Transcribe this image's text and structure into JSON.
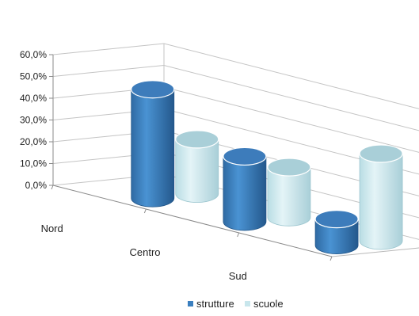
{
  "chart_data": {
    "type": "bar",
    "style": "3d-cylinder",
    "categories": [
      "Nord",
      "Centro",
      "Sud"
    ],
    "series": [
      {
        "name": "strutture",
        "color": "#3a7fbf",
        "values": [
          50.0,
          30.0,
          12.0
        ]
      },
      {
        "name": "scuole",
        "color": "#c8e6ec",
        "values": [
          25.0,
          23.0,
          40.0
        ]
      }
    ],
    "ylim": [
      0,
      60
    ],
    "y_ticks": [
      "0,0%",
      "10,0%",
      "20,0%",
      "30,0%",
      "40,0%",
      "50,0%",
      "60,0%"
    ],
    "grid": true,
    "legend_position": "bottom"
  }
}
